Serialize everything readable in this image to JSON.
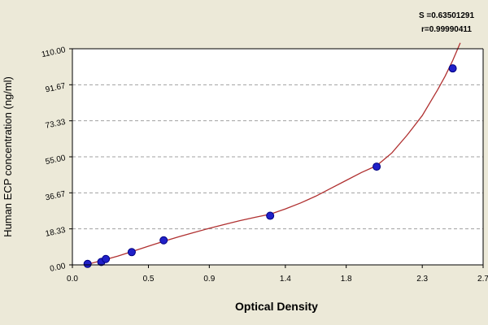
{
  "chart_data": {
    "type": "scatter",
    "xlabel": "Optical Density",
    "ylabel": "Human ECP concentration (ng/ml)",
    "annotations": [
      "S =0.63501291",
      "r=0.99990411"
    ],
    "x_ticks": [
      0.0,
      0.5,
      0.9,
      1.4,
      1.8,
      2.3,
      2.7
    ],
    "x_tick_labels": [
      "0.0",
      "0.5",
      "0.9",
      "1.4",
      "1.8",
      "2.3",
      "2.7"
    ],
    "y_ticks": [
      0.0,
      18.33,
      36.67,
      55.0,
      73.33,
      91.67,
      110.0
    ],
    "y_tick_labels": [
      "0.00",
      "18.33",
      "36.67",
      "55.00",
      "73.33",
      "91.67",
      "110.00"
    ],
    "xlim": [
      0.0,
      2.7
    ],
    "ylim": [
      0.0,
      110.0
    ],
    "grid": "horizontal dashed",
    "series": [
      {
        "x": [
          0.1,
          0.19,
          0.22,
          0.39,
          0.6,
          1.3,
          2.0,
          2.5
        ],
        "y": [
          0.5,
          1.5,
          3.0,
          6.5,
          12.5,
          25.0,
          50.0,
          100.0
        ]
      }
    ],
    "fit_curve": {
      "x": [
        0.05,
        0.1,
        0.2,
        0.3,
        0.4,
        0.5,
        0.6,
        0.7,
        0.8,
        0.9,
        1.0,
        1.1,
        1.2,
        1.3,
        1.4,
        1.5,
        1.6,
        1.7,
        1.8,
        1.9,
        2.0,
        2.1,
        2.2,
        2.3,
        2.4,
        2.45,
        2.5,
        2.55
      ],
      "y": [
        -0.5,
        0.3,
        2.3,
        4.5,
        7.0,
        9.5,
        12.0,
        14.3,
        16.5,
        18.6,
        20.6,
        22.5,
        24.2,
        25.8,
        28.5,
        31.5,
        35.0,
        39.0,
        43.0,
        47.0,
        50.5,
        57.0,
        66.0,
        76.0,
        89.0,
        96.0,
        104.0,
        113.0
      ]
    },
    "colors": {
      "outer_background": "#ece9d8",
      "plot_background": "#ffffff",
      "grid": "#a0a0a0",
      "curve": "#b03030",
      "marker": "#2020c8",
      "marker_stroke": "#000080"
    }
  }
}
